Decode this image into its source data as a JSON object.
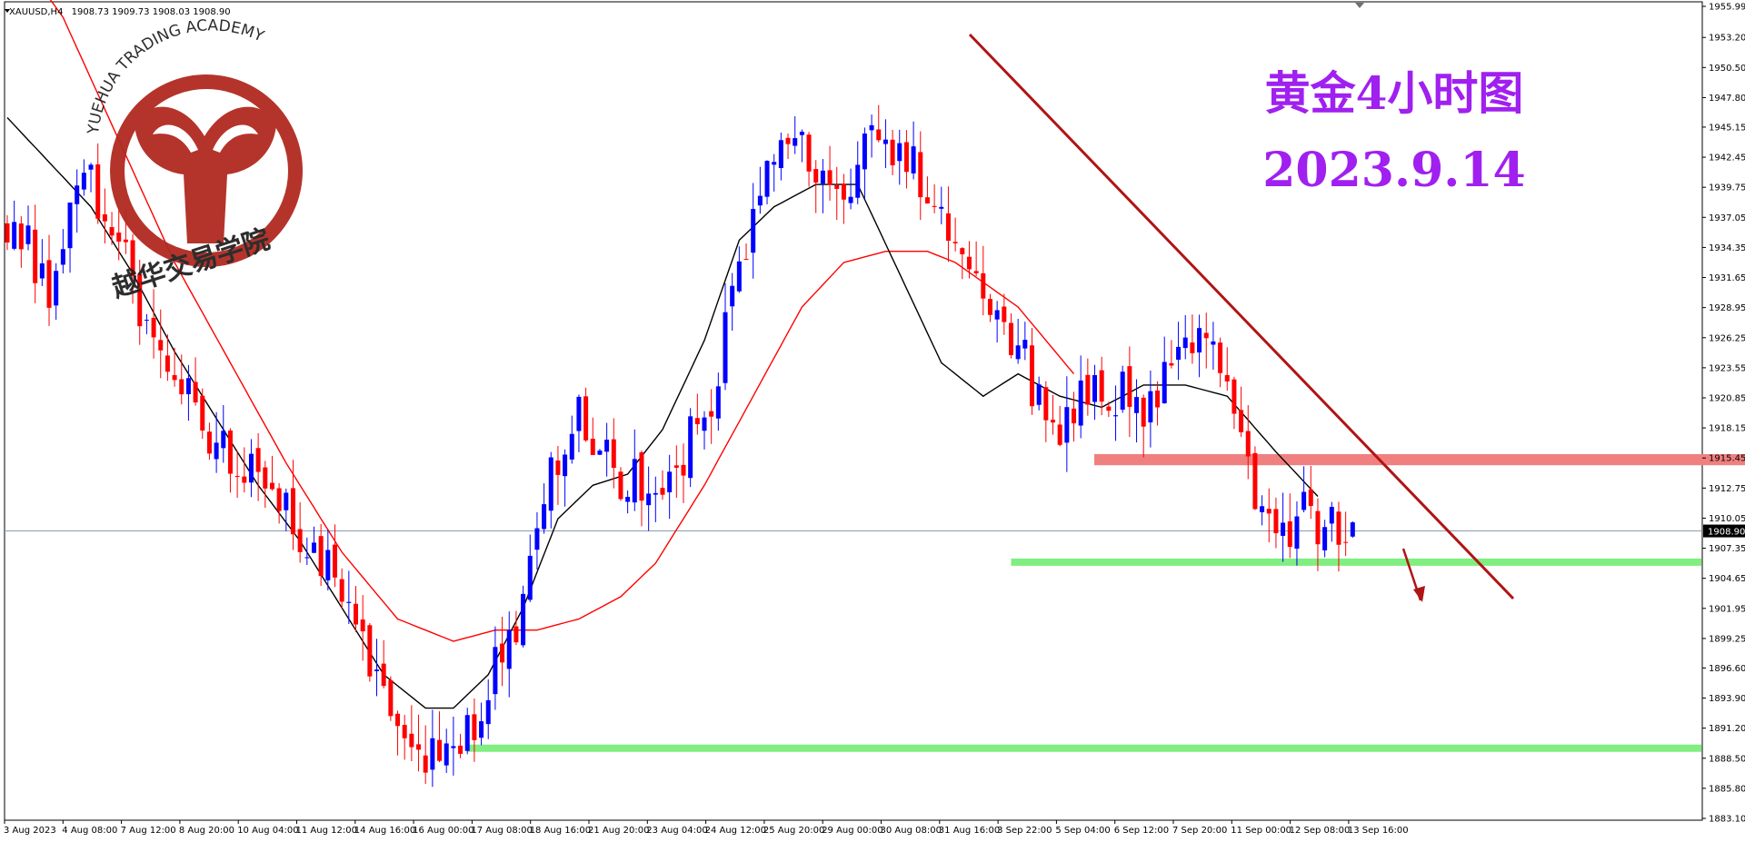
{
  "header": {
    "symbol": "XAUUSD,H4",
    "ohlc": "1908.73 1909.73 1908.03 1908.90"
  },
  "watermark": {
    "text_en": "YUEHUA TRADING ACADEMY",
    "text_cn": "越华交易学院"
  },
  "annotation": {
    "title": "黄金4小时图",
    "date": "2023.9.14"
  },
  "colors": {
    "bull": "#0000ff",
    "bear": "#ff0000",
    "ma_fast": "#000000",
    "ma_slow": "#ff0000",
    "trendline": "#b01414",
    "resistance_zone": "#f08080",
    "support_zone": "#80ee80",
    "current_price_line": "#8c9bb0",
    "axis": "#000000",
    "title": "#a020f0",
    "logo": "#b02a20"
  },
  "chart_data": {
    "type": "candlestick",
    "ylim": [
      1883.1,
      1955.99
    ],
    "current_price": "1908.90",
    "price_ticks": [
      "1955.99",
      "1953.20",
      "1950.50",
      "1947.80",
      "1945.15",
      "1942.45",
      "1939.75",
      "1937.05",
      "1934.35",
      "1931.65",
      "1928.95",
      "1926.25",
      "1923.55",
      "1920.85",
      "1918.15",
      "1915.45",
      "1912.75",
      "1910.05",
      "1907.35",
      "1904.65",
      "1901.95",
      "1899.25",
      "1896.60",
      "1893.90",
      "1891.20",
      "1888.50",
      "1885.80",
      "1883.10"
    ],
    "time_ticks": [
      "3 Aug 2023",
      "4 Aug 08:00",
      "7 Aug 12:00",
      "8 Aug 20:00",
      "10 Aug 04:00",
      "11 Aug 12:00",
      "14 Aug 16:00",
      "16 Aug 00:00",
      "17 Aug 08:00",
      "18 Aug 16:00",
      "21 Aug 20:00",
      "23 Aug 04:00",
      "24 Aug 12:00",
      "25 Aug 20:00",
      "29 Aug 00:00",
      "30 Aug 08:00",
      "31 Aug 16:00",
      "3 Sep 22:00",
      "5 Sep 04:00",
      "6 Sep 12:00",
      "7 Sep 20:00",
      "11 Sep 00:00",
      "12 Sep 08:00",
      "13 Sep 16:00"
    ],
    "keypoints": [
      [
        0,
        1937
      ],
      [
        6,
        1931
      ],
      [
        10,
        1942
      ],
      [
        15,
        1936
      ],
      [
        22,
        1925
      ],
      [
        28,
        1918
      ],
      [
        35,
        1914
      ],
      [
        45,
        1906
      ],
      [
        52,
        1897
      ],
      [
        58,
        1890
      ],
      [
        63,
        1888
      ],
      [
        66,
        1891
      ],
      [
        70,
        1896
      ],
      [
        74,
        1902
      ],
      [
        77,
        1913
      ],
      [
        82,
        1919
      ],
      [
        89,
        1913
      ],
      [
        95,
        1914
      ],
      [
        101,
        1921
      ],
      [
        107,
        1937
      ],
      [
        112,
        1944
      ],
      [
        118,
        1939
      ],
      [
        125,
        1944
      ],
      [
        131,
        1941
      ],
      [
        138,
        1934
      ],
      [
        144,
        1927
      ],
      [
        150,
        1918
      ],
      [
        155,
        1922
      ],
      [
        163,
        1920
      ],
      [
        169,
        1926
      ],
      [
        175,
        1923
      ],
      [
        180,
        1909
      ],
      [
        186,
        1910
      ],
      [
        193,
        1908.9
      ]
    ],
    "ma_fast_keypoints": [
      [
        0,
        1946
      ],
      [
        6,
        1942
      ],
      [
        12,
        1938
      ],
      [
        18,
        1932
      ],
      [
        24,
        1925
      ],
      [
        30,
        1919
      ],
      [
        36,
        1913
      ],
      [
        42,
        1908
      ],
      [
        48,
        1902
      ],
      [
        54,
        1896
      ],
      [
        60,
        1893
      ],
      [
        64,
        1893
      ],
      [
        69,
        1896
      ],
      [
        74,
        1902
      ],
      [
        79,
        1910
      ],
      [
        84,
        1913
      ],
      [
        89,
        1914
      ],
      [
        94,
        1918
      ],
      [
        100,
        1926
      ],
      [
        105,
        1935
      ],
      [
        110,
        1938
      ],
      [
        116,
        1940
      ],
      [
        122,
        1940
      ],
      [
        128,
        1932
      ],
      [
        134,
        1924
      ],
      [
        140,
        1921
      ],
      [
        145,
        1923
      ],
      [
        151,
        1921
      ],
      [
        157,
        1920
      ],
      [
        163,
        1922
      ],
      [
        169,
        1922
      ],
      [
        175,
        1921
      ],
      [
        182,
        1916
      ],
      [
        188,
        1912
      ]
    ],
    "ma_slow_keypoints": [
      [
        0,
        1962
      ],
      [
        8,
        1955
      ],
      [
        16,
        1944
      ],
      [
        24,
        1933
      ],
      [
        32,
        1924
      ],
      [
        40,
        1915
      ],
      [
        48,
        1907
      ],
      [
        56,
        1901
      ],
      [
        64,
        1899
      ],
      [
        70,
        1900
      ],
      [
        76,
        1900
      ],
      [
        82,
        1901
      ],
      [
        88,
        1903
      ],
      [
        93,
        1906
      ],
      [
        100,
        1913
      ],
      [
        107,
        1921
      ],
      [
        114,
        1929
      ],
      [
        120,
        1933
      ],
      [
        126,
        1934
      ],
      [
        132,
        1934
      ],
      [
        136,
        1933
      ],
      [
        145,
        1929
      ],
      [
        153,
        1923
      ]
    ],
    "trendline": [
      [
        1067,
        38
      ],
      [
        1665,
        659
      ]
    ],
    "resistance_zone": [
      1915.8,
      1914.8
    ],
    "support_zones": [
      {
        "from_bar": 144,
        "price": 1906.1
      },
      {
        "from_bar": 66,
        "price": 1889.4
      }
    ],
    "arrow": [
      [
        1544,
        604
      ],
      [
        1563,
        661
      ]
    ]
  }
}
